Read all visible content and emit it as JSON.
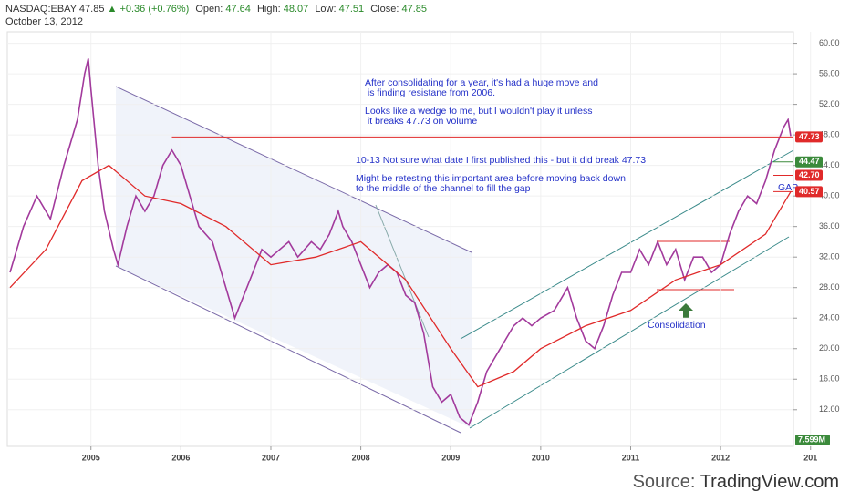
{
  "header": {
    "symbol": "NASDAQ:EBAY",
    "last": "47.85",
    "change": "▲ +0.36 (+0.76%)",
    "open_label": "Open:",
    "open": "47.64",
    "high_label": "High:",
    "high": "48.07",
    "low_label": "Low:",
    "low": "47.51",
    "close_label": "Close:",
    "close": "47.85",
    "date": "October 13, 2012"
  },
  "footer": {
    "source_label": "Source:",
    "source": "TradingView.com"
  },
  "chart_data": {
    "type": "line",
    "xlim": [
      2004.07,
      2012.81
    ],
    "xticks": [
      2005,
      2006,
      2007,
      2008,
      2009,
      2010,
      2011,
      2012,
      {
        "value": 2013,
        "label": "201"
      }
    ],
    "ylim": [
      7.2,
      61.5
    ],
    "yticks": [
      {
        "value": 12,
        "label": "12.00"
      },
      {
        "value": 16,
        "label": "16.00"
      },
      {
        "value": 20,
        "label": "20.00"
      },
      {
        "value": 24,
        "label": "24.00"
      },
      {
        "value": 28,
        "label": "28.00"
      },
      {
        "value": 32,
        "label": "32.00"
      },
      {
        "value": 36,
        "label": "36.00"
      },
      {
        "value": 40,
        "label": "40.00"
      },
      {
        "value": 44,
        "label": "44.00"
      },
      {
        "value": 48,
        "label": "48.00"
      },
      {
        "value": 52,
        "label": "52.00"
      },
      {
        "value": 56,
        "label": "56.00"
      },
      {
        "value": 60,
        "label": "60.00"
      }
    ],
    "grid": true,
    "series": [
      {
        "name": "EBAY",
        "color": "#a23a9c",
        "x": [
          2004.1,
          2004.25,
          2004.4,
          2004.55,
          2004.7,
          2004.85,
          2004.93,
          2004.97,
          2005.0,
          2005.08,
          2005.15,
          2005.25,
          2005.3,
          2005.4,
          2005.5,
          2005.6,
          2005.7,
          2005.8,
          2005.9,
          2006.0,
          2006.1,
          2006.2,
          2006.35,
          2006.45,
          2006.55,
          2006.6,
          2006.7,
          2006.8,
          2006.9,
          2007.0,
          2007.1,
          2007.2,
          2007.3,
          2007.45,
          2007.55,
          2007.65,
          2007.75,
          2007.8,
          2007.9,
          2008.0,
          2008.1,
          2008.2,
          2008.3,
          2008.4,
          2008.5,
          2008.6,
          2008.7,
          2008.8,
          2008.9,
          2009.0,
          2009.1,
          2009.2,
          2009.3,
          2009.4,
          2009.5,
          2009.6,
          2009.7,
          2009.8,
          2009.9,
          2010.0,
          2010.15,
          2010.3,
          2010.4,
          2010.5,
          2010.6,
          2010.7,
          2010.8,
          2010.9,
          2011.0,
          2011.1,
          2011.2,
          2011.3,
          2011.4,
          2011.5,
          2011.6,
          2011.7,
          2011.8,
          2011.9,
          2012.0,
          2012.1,
          2012.2,
          2012.3,
          2012.4,
          2012.5,
          2012.6,
          2012.7,
          2012.75,
          2012.78
        ],
        "values": [
          30,
          36,
          40,
          37,
          44,
          50,
          56,
          58,
          54,
          44,
          38,
          33,
          31,
          36,
          40,
          38,
          40,
          44,
          46,
          44,
          40,
          36,
          34,
          30,
          26,
          24,
          27,
          30,
          33,
          32,
          33,
          34,
          32,
          34,
          33,
          35,
          38,
          36,
          34,
          31,
          28,
          30,
          31,
          30,
          27,
          26,
          22,
          15,
          13,
          14,
          11,
          10,
          13,
          17,
          19,
          21,
          23,
          24,
          23,
          24,
          25,
          28,
          24,
          21,
          20,
          23,
          27,
          30,
          30,
          33,
          31,
          34,
          31,
          33,
          29,
          32,
          32,
          30,
          31,
          35,
          38,
          40,
          39,
          42,
          46,
          49,
          50,
          47.85
        ]
      },
      {
        "name": "MA",
        "color": "#e02a2a",
        "x": [
          2004.1,
          2004.5,
          2004.9,
          2005.2,
          2005.6,
          2006.0,
          2006.5,
          2007.0,
          2007.5,
          2008.0,
          2008.5,
          2009.0,
          2009.3,
          2009.7,
          2010.0,
          2010.5,
          2011.0,
          2011.5,
          2012.0,
          2012.5,
          2012.78
        ],
        "values": [
          28,
          33,
          42,
          44,
          40,
          39,
          36,
          31,
          32,
          34,
          29,
          20,
          15,
          17,
          20,
          23,
          25,
          29,
          31,
          35,
          40.57
        ]
      }
    ],
    "levels": [
      {
        "value": 47.73,
        "label": "47.73",
        "color": "#e02a2a"
      },
      {
        "value": 44.47,
        "label": "44.47",
        "color": "#3b8a3b"
      },
      {
        "value": 42.7,
        "label": "42.70",
        "color": "#e02a2a"
      },
      {
        "value": 40.57,
        "label": "40.57",
        "color": "#e02a2a"
      }
    ],
    "volume_label": "7.599M",
    "annotations": [
      "After consolidating for a year, it's had a huge move and",
      " is finding resistane from 2006.",
      "Looks like a wedge to me, but I wouldn't play it unless",
      " it breaks 47.73 on volume",
      "10-13 Not sure what date I first published this - but it did break 47.73",
      "Might be retesting this important area before moving back down",
      "to the middle of the channel to fill the gap",
      "Consolidation",
      "GAP"
    ]
  }
}
